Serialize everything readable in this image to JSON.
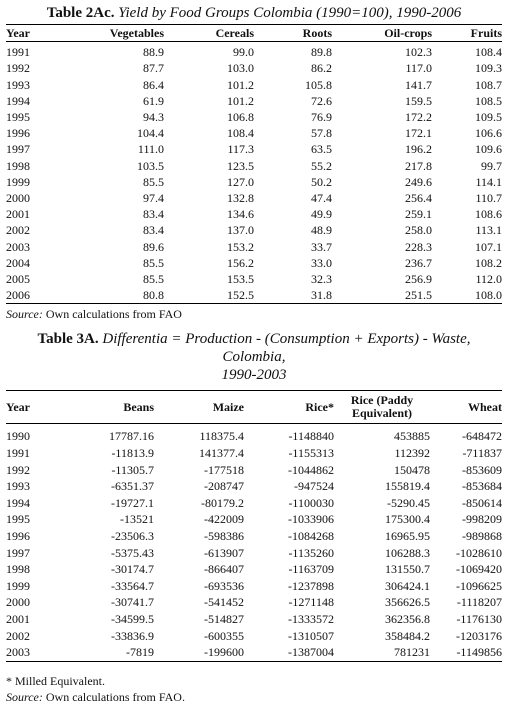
{
  "table1": {
    "title_bold": "Table 2Ac.",
    "title_italic": "Yield by Food Groups Colombia (1990=100), 1990-2006",
    "headers": [
      "Year",
      "Vegetables",
      "Cereals",
      "Roots",
      "Oil-crops",
      "Fruits"
    ],
    "rows": [
      [
        "1991",
        "88.9",
        "99.0",
        "89.8",
        "102.3",
        "108.4"
      ],
      [
        "1992",
        "87.7",
        "103.0",
        "86.2",
        "117.0",
        "109.3"
      ],
      [
        "1993",
        "86.4",
        "101.2",
        "105.8",
        "141.7",
        "108.7"
      ],
      [
        "1994",
        "61.9",
        "101.2",
        "72.6",
        "159.5",
        "108.5"
      ],
      [
        "1995",
        "94.3",
        "106.8",
        "76.9",
        "172.2",
        "109.5"
      ],
      [
        "1996",
        "104.4",
        "108.4",
        "57.8",
        "172.1",
        "106.6"
      ],
      [
        "1997",
        "111.0",
        "117.3",
        "63.5",
        "196.2",
        "109.6"
      ],
      [
        "1998",
        "103.5",
        "123.5",
        "55.2",
        "217.8",
        "99.7"
      ],
      [
        "1999",
        "85.5",
        "127.0",
        "50.2",
        "249.6",
        "114.1"
      ],
      [
        "2000",
        "97.4",
        "132.8",
        "47.4",
        "256.4",
        "110.7"
      ],
      [
        "2001",
        "83.4",
        "134.6",
        "49.9",
        "259.1",
        "108.6"
      ],
      [
        "2002",
        "83.4",
        "137.0",
        "48.9",
        "258.0",
        "113.1"
      ],
      [
        "2003",
        "89.6",
        "153.2",
        "33.7",
        "228.3",
        "107.1"
      ],
      [
        "2004",
        "85.5",
        "156.2",
        "33.0",
        "236.7",
        "108.2"
      ],
      [
        "2005",
        "85.5",
        "153.5",
        "32.3",
        "256.9",
        "112.0"
      ],
      [
        "2006",
        "80.8",
        "152.5",
        "31.8",
        "251.5",
        "108.0"
      ]
    ],
    "source_label": "Source:",
    "source_text": "Own calculations from FAO"
  },
  "table2": {
    "title_bold": "Table 3A.",
    "title_italic_line1": "Differentia = Production - (Consumption + Exports) - Waste, Colombia,",
    "title_italic_line2": "1990-2003",
    "headers": [
      "Year",
      "Beans",
      "Maize",
      "Rice*",
      "Rice (Paddy Equivalent)",
      "Wheat"
    ],
    "rows": [
      [
        "1990",
        "17787.16",
        "118375.4",
        "-1148840",
        "453885",
        "-648472"
      ],
      [
        "1991",
        "-11813.9",
        "141377.4",
        "-1155313",
        "112392",
        "-711837"
      ],
      [
        "1992",
        "-11305.7",
        "-177518",
        "-1044862",
        "150478",
        "-853609"
      ],
      [
        "1993",
        "-6351.37",
        "-208747",
        "-947524",
        "155819.4",
        "-853684"
      ],
      [
        "1994",
        "-19727.1",
        "-80179.2",
        "-1100030",
        "-5290.45",
        "-850614"
      ],
      [
        "1995",
        "-13521",
        "-422009",
        "-1033906",
        "175300.4",
        "-998209"
      ],
      [
        "1996",
        "-23506.3",
        "-598386",
        "-1084268",
        "16965.95",
        "-989868"
      ],
      [
        "1997",
        "-5375.43",
        "-613907",
        "-1135260",
        "106288.3",
        "-1028610"
      ],
      [
        "1998",
        "-30174.7",
        "-866407",
        "-1163709",
        "131550.7",
        "-1069420"
      ],
      [
        "1999",
        "-33564.7",
        "-693536",
        "-1237898",
        "306424.1",
        "-1096625"
      ],
      [
        "2000",
        "-30741.7",
        "-541452",
        "-1271148",
        "356626.5",
        "-1118207"
      ],
      [
        "2001",
        "-34599.5",
        "-514827",
        "-1333572",
        "362356.8",
        "-1176130"
      ],
      [
        "2002",
        "-33836.9",
        "-600355",
        "-1310507",
        "358484.2",
        "-1203176"
      ],
      [
        "2003",
        "-7819",
        "-199600",
        "-1387004",
        "781231",
        "-1149856"
      ]
    ],
    "footnote": "* Milled Equivalent.",
    "source_label": "Source:",
    "source_text": "Own calculations from FAO."
  }
}
